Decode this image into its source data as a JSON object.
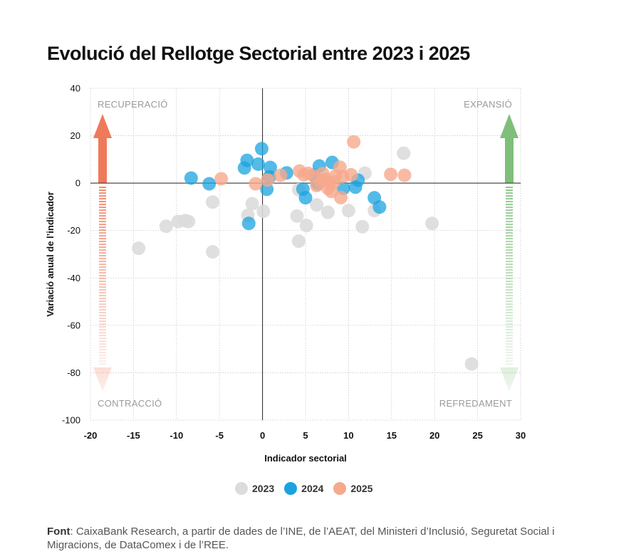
{
  "title": "Evolució del Rellotge Sectorial entre 2023 i 2025",
  "source": {
    "label": "Font",
    "text": ": CaixaBank Research, a partir de dades de l’INE, de l’AEAT, del Ministeri d’Inclusió, Seguretat Social i Migracions, de DataComex i de l’REE."
  },
  "colors": {
    "2023": "#dcdcdc",
    "2024": "#1ba3e0",
    "2025": "#f6a98c",
    "arrow_up": "#ef7a5a",
    "arrow_green": "#7fbf7a",
    "grid": "#c8c8c8",
    "quadrant_label": "#9a9a9a"
  },
  "chart_data": {
    "type": "scatter",
    "title": "Evolució del Rellotge Sectorial entre 2023 i 2025",
    "xlabel": "Indicador sectorial",
    "ylabel": "Variació anual de l’indicador",
    "xlim": [
      -20,
      30
    ],
    "ylim": [
      -100,
      40
    ],
    "xticks": [
      -20,
      -15,
      -10,
      -5,
      0,
      5,
      10,
      15,
      20,
      25,
      30
    ],
    "xtick_labels": [
      "-20",
      "-15",
      "-10",
      "-5",
      "0",
      "5",
      "10",
      "15",
      "20",
      "25",
      "30"
    ],
    "yticks": [
      -100,
      -80,
      -60,
      -40,
      -20,
      0,
      20,
      40
    ],
    "ytick_labels": [
      "-100",
      "-80",
      "-60",
      "-40",
      "-20",
      "0",
      "20",
      "40"
    ],
    "quadrant_labels": [
      "RECUPERACIÓ",
      "EXPANSIÓ",
      "CONTRACCIÓ",
      "REFREDAMENT"
    ],
    "series": [
      {
        "name": "2023",
        "color": "#dcdcdc",
        "points": [
          [
            -14.4,
            -27.5
          ],
          [
            -11.2,
            -18.2
          ],
          [
            -9.8,
            -16.2
          ],
          [
            -9.0,
            -15.8
          ],
          [
            -8.6,
            -16.2
          ],
          [
            -5.8,
            -8.0
          ],
          [
            -5.8,
            -29.0
          ],
          [
            -1.7,
            -13.6
          ],
          [
            -1.2,
            -8.7
          ],
          [
            0.1,
            -11.9
          ],
          [
            0.8,
            2.8
          ],
          [
            4.0,
            -13.9
          ],
          [
            4.2,
            -2.8
          ],
          [
            4.2,
            -24.5
          ],
          [
            5.1,
            -17.9
          ],
          [
            6.3,
            1.2
          ],
          [
            6.3,
            -9.2
          ],
          [
            7.6,
            -12.3
          ],
          [
            10.0,
            -11.6
          ],
          [
            11.6,
            -18.4
          ],
          [
            11.9,
            4.2
          ],
          [
            13.0,
            -11.6
          ],
          [
            16.4,
            12.6
          ],
          [
            19.7,
            -17.0
          ],
          [
            24.3,
            -76.3
          ]
        ]
      },
      {
        "name": "2024",
        "color": "#1ba3e0",
        "points": [
          [
            -8.3,
            2.1
          ],
          [
            -6.2,
            -0.3
          ],
          [
            -2.1,
            6.4
          ],
          [
            -1.8,
            9.6
          ],
          [
            -1.6,
            -17.0
          ],
          [
            -0.5,
            8.0
          ],
          [
            -0.1,
            14.5
          ],
          [
            0.5,
            -2.6
          ],
          [
            0.8,
            2.5
          ],
          [
            0.9,
            6.6
          ],
          [
            2.8,
            4.3
          ],
          [
            4.7,
            -2.5
          ],
          [
            5.0,
            -6.2
          ],
          [
            6.0,
            3.3
          ],
          [
            6.4,
            -0.2
          ],
          [
            6.6,
            7.2
          ],
          [
            8.1,
            8.7
          ],
          [
            9.4,
            -2.2
          ],
          [
            10.8,
            -1.7
          ],
          [
            11.1,
            1.2
          ],
          [
            13.0,
            -6.2
          ],
          [
            13.6,
            -10.1
          ]
        ]
      },
      {
        "name": "2025",
        "color": "#f6a98c",
        "points": [
          [
            -4.8,
            1.8
          ],
          [
            -0.8,
            -0.3
          ],
          [
            0.6,
            1.3
          ],
          [
            2.1,
            3.3
          ],
          [
            4.3,
            5.1
          ],
          [
            4.8,
            3.5
          ],
          [
            5.3,
            4.1
          ],
          [
            6.0,
            3.0
          ],
          [
            6.3,
            -1.0
          ],
          [
            6.8,
            0.6
          ],
          [
            7.0,
            4.0
          ],
          [
            7.3,
            1.6
          ],
          [
            7.6,
            -2.2
          ],
          [
            7.8,
            0.3
          ],
          [
            8.0,
            -3.5
          ],
          [
            8.3,
            0.5
          ],
          [
            8.5,
            3.0
          ],
          [
            9.0,
            6.7
          ],
          [
            9.1,
            -6.1
          ],
          [
            9.3,
            2.7
          ],
          [
            10.3,
            3.5
          ],
          [
            10.6,
            17.4
          ],
          [
            14.9,
            3.7
          ],
          [
            16.5,
            3.3
          ]
        ]
      }
    ]
  }
}
